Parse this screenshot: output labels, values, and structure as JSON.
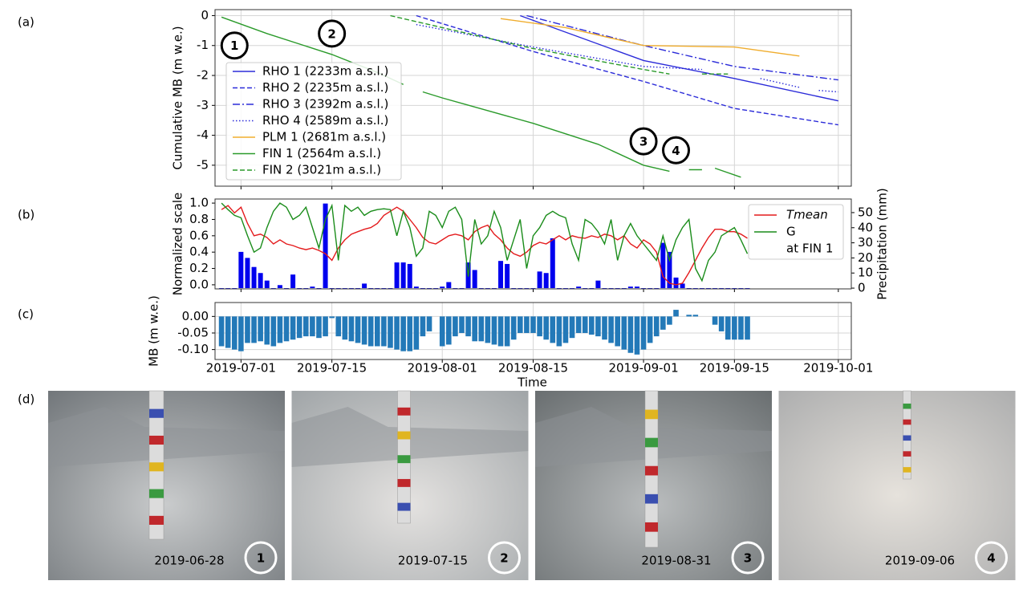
{
  "panel_labels": [
    "(a)",
    "(b)",
    "(c)",
    "(d)"
  ],
  "chart_data": [
    {
      "type": "line",
      "ylabel": "Cumulative MB (m w.e.)",
      "xlim": [
        "2019-06-27",
        "2019-10-03"
      ],
      "ylim": [
        -5.7,
        0.2
      ],
      "yticks": [
        0,
        -1,
        -2,
        -3,
        -4,
        -5
      ],
      "xticks": [
        "2019-07-01",
        "2019-07-15",
        "2019-08-01",
        "2019-08-15",
        "2019-09-01",
        "2019-09-15",
        "2019-10-01"
      ],
      "xtick_labels": false,
      "grid": true,
      "legend": "center left",
      "series": [
        {
          "name": "RHO 1 (2233m a.s.l.)",
          "color": "#2b2bd9",
          "style": "solid",
          "x": [
            "2019-08-13",
            "2019-09-01",
            "2019-09-15",
            "2019-10-01"
          ],
          "values": [
            0.0,
            -1.5,
            -2.1,
            -2.85
          ]
        },
        {
          "name": "RHO 2 (2235m a.s.l.)",
          "color": "#2b2bd9",
          "style": "dashed",
          "x": [
            "2019-07-28",
            "2019-08-15",
            "2019-09-01",
            "2019-09-15",
            "2019-10-01"
          ],
          "values": [
            0.0,
            -1.2,
            -2.2,
            -3.1,
            -3.65
          ]
        },
        {
          "name": "RHO 3 (2392m a.s.l.)",
          "color": "#2b2bd9",
          "style": "dashdot",
          "x": [
            "2019-08-14",
            "2019-09-01",
            "2019-09-15",
            "2019-10-01"
          ],
          "values": [
            0.0,
            -1.0,
            -1.7,
            -2.15
          ]
        },
        {
          "name": "RHO 4 (2589m a.s.l.)",
          "color": "#2b2bd9",
          "style": "dotted",
          "x": [
            "2019-07-28",
            "2019-08-15",
            "2019-09-01",
            "2019-09-10",
            "2019-09-11",
            "2019-09-19",
            "2019-09-25",
            "2019-09-26",
            "2019-09-28",
            "2019-10-01"
          ],
          "values": [
            -0.3,
            -1.05,
            -1.7,
            -1.8,
            null,
            -2.1,
            -2.4,
            null,
            -2.5,
            -2.55
          ]
        },
        {
          "name": "PLM 1 (2681m a.s.l.)",
          "color": "#f0ad2e",
          "style": "solid",
          "x": [
            "2019-08-10",
            "2019-08-20",
            "2019-09-01",
            "2019-09-15",
            "2019-09-25"
          ],
          "values": [
            -0.1,
            -0.4,
            -1.0,
            -1.05,
            -1.35
          ]
        },
        {
          "name": "FIN 1 (2564m a.s.l.)",
          "color": "#2a9a2a",
          "style": "solid",
          "x": [
            "2019-06-28",
            "2019-07-05",
            "2019-07-15",
            "2019-07-22",
            "2019-07-26",
            "2019-07-27",
            "2019-07-29",
            "2019-08-01",
            "2019-08-15",
            "2019-08-25",
            "2019-09-01",
            "2019-09-05",
            "2019-09-06",
            "2019-09-08",
            "2019-09-10",
            "2019-09-11",
            "2019-09-12",
            "2019-09-16"
          ],
          "values": [
            -0.05,
            -0.6,
            -1.3,
            -1.9,
            -2.3,
            null,
            -2.55,
            -2.75,
            -3.6,
            -4.3,
            -5.0,
            -5.2,
            null,
            -5.15,
            -5.15,
            null,
            -5.1,
            -5.4
          ]
        },
        {
          "name": "FIN 2 (3021m a.s.l.)",
          "color": "#2a9a2a",
          "style": "dashed",
          "x": [
            "2019-07-24",
            "2019-08-01",
            "2019-08-15",
            "2019-09-01",
            "2019-09-05",
            "2019-09-06",
            "2019-09-10",
            "2019-09-14"
          ],
          "values": [
            0.0,
            -0.4,
            -1.1,
            -1.8,
            -1.95,
            null,
            -1.95,
            -1.95
          ]
        }
      ],
      "annotations": [
        {
          "text": "1",
          "x": "2019-06-30",
          "y": -1.0
        },
        {
          "text": "2",
          "x": "2019-07-15",
          "y": -0.6
        },
        {
          "text": "3",
          "x": "2019-09-01",
          "y": -4.2
        },
        {
          "text": "4",
          "x": "2019-09-06",
          "y": -4.5
        }
      ]
    },
    {
      "type": "line",
      "ylabel": "Normalized scale",
      "y2label": "Precipitation (mm)",
      "y2color": "#0000ee",
      "xlim": [
        "2019-06-27",
        "2019-10-03"
      ],
      "ylim": [
        -0.05,
        1.05
      ],
      "yticks": [
        {
          "value": 0,
          "label": "0.0"
        },
        {
          "value": 0.2,
          "label": "0.2"
        },
        {
          "value": 0.4,
          "label": "0.4"
        },
        {
          "value": 0.6,
          "label": "0.6"
        },
        {
          "value": 0.8,
          "label": "0.8"
        },
        {
          "value": 1,
          "label": "1.0"
        }
      ],
      "y2lim": [
        -0.5,
        59
      ],
      "y2ticks": [
        0,
        10,
        20,
        30,
        40,
        50
      ],
      "xticks": [
        "2019-07-01",
        "2019-07-15",
        "2019-08-01",
        "2019-08-15",
        "2019-09-01",
        "2019-09-15",
        "2019-10-01"
      ],
      "xtick_labels": false,
      "grid": false,
      "legend": "upper right",
      "legend_note": "at FIN 1",
      "x": [
        "2019-06-28",
        "2019-06-29",
        "2019-06-30",
        "2019-07-01",
        "2019-07-02",
        "2019-07-03",
        "2019-07-04",
        "2019-07-05",
        "2019-07-06",
        "2019-07-07",
        "2019-07-08",
        "2019-07-09",
        "2019-07-10",
        "2019-07-11",
        "2019-07-12",
        "2019-07-13",
        "2019-07-14",
        "2019-07-15",
        "2019-07-16",
        "2019-07-17",
        "2019-07-18",
        "2019-07-19",
        "2019-07-20",
        "2019-07-21",
        "2019-07-22",
        "2019-07-23",
        "2019-07-24",
        "2019-07-25",
        "2019-07-26",
        "2019-07-27",
        "2019-07-28",
        "2019-07-29",
        "2019-07-30",
        "2019-07-31",
        "2019-08-01",
        "2019-08-02",
        "2019-08-03",
        "2019-08-04",
        "2019-08-05",
        "2019-08-06",
        "2019-08-07",
        "2019-08-08",
        "2019-08-09",
        "2019-08-10",
        "2019-08-11",
        "2019-08-12",
        "2019-08-13",
        "2019-08-14",
        "2019-08-15",
        "2019-08-16",
        "2019-08-17",
        "2019-08-18",
        "2019-08-19",
        "2019-08-20",
        "2019-08-21",
        "2019-08-22",
        "2019-08-23",
        "2019-08-24",
        "2019-08-25",
        "2019-08-26",
        "2019-08-27",
        "2019-08-28",
        "2019-08-29",
        "2019-08-30",
        "2019-08-31",
        "2019-09-01",
        "2019-09-02",
        "2019-09-03",
        "2019-09-04",
        "2019-09-05",
        "2019-09-06",
        "2019-09-07",
        "2019-09-08",
        "2019-09-09",
        "2019-09-10",
        "2019-09-11",
        "2019-09-12",
        "2019-09-13",
        "2019-09-14",
        "2019-09-15",
        "2019-09-16",
        "2019-09-17"
      ],
      "series": [
        {
          "name": "Tmean",
          "color": "#e41a1c",
          "values": [
            0.92,
            0.97,
            0.88,
            0.95,
            0.75,
            0.6,
            0.62,
            0.58,
            0.5,
            0.55,
            0.5,
            0.48,
            0.45,
            0.43,
            0.45,
            0.42,
            0.38,
            0.3,
            0.45,
            0.55,
            0.62,
            0.65,
            0.68,
            0.7,
            0.75,
            0.85,
            0.9,
            0.95,
            0.9,
            0.8,
            0.7,
            0.58,
            0.52,
            0.5,
            0.55,
            0.6,
            0.62,
            0.6,
            0.55,
            0.65,
            0.7,
            0.73,
            0.62,
            0.55,
            0.45,
            0.38,
            0.35,
            0.4,
            0.48,
            0.52,
            0.5,
            0.55,
            0.6,
            0.55,
            0.6,
            0.58,
            0.57,
            0.6,
            0.58,
            0.62,
            0.6,
            0.55,
            0.6,
            0.5,
            0.45,
            0.55,
            0.5,
            0.4,
            0.1,
            0.02,
            0,
            0.02,
            0.15,
            0.3,
            0.45,
            0.58,
            0.68,
            0.68,
            0.65,
            0.65,
            0.62,
            0.57
          ]
        },
        {
          "name": "G",
          "color": "#1a8c1a",
          "values": [
            1.0,
            0.92,
            0.85,
            0.82,
            0.6,
            0.4,
            0.45,
            0.7,
            0.9,
            1.0,
            0.95,
            0.8,
            0.85,
            0.95,
            0.7,
            0.45,
            0.8,
            0.97,
            0.3,
            0.97,
            0.9,
            0.95,
            0.85,
            0.9,
            0.92,
            0.93,
            0.92,
            0.6,
            0.9,
            0.7,
            0.35,
            0.45,
            0.9,
            0.85,
            0.7,
            0.9,
            0.95,
            0.8,
            0.1,
            0.8,
            0.5,
            0.6,
            0.9,
            0.7,
            0.3,
            0.55,
            0.8,
            0.2,
            0.6,
            0.7,
            0.85,
            0.9,
            0.85,
            0.82,
            0.5,
            0.3,
            0.8,
            0.75,
            0.65,
            0.5,
            0.8,
            0.3,
            0.6,
            0.75,
            0.6,
            0.5,
            0.4,
            0.3,
            0.6,
            0.3,
            0.55,
            0.7,
            0.8,
            0.2,
            0.05,
            0.3,
            0.4,
            0.6,
            0.65,
            0.7,
            0.55,
            0.38
          ]
        }
      ],
      "bars": {
        "color": "#0000ee",
        "axis": "y2",
        "values": [
          0,
          0,
          0,
          24,
          20,
          14,
          10,
          5,
          0,
          2,
          0,
          9,
          0,
          0,
          1,
          0,
          56,
          0,
          0,
          0,
          0,
          0,
          3,
          0,
          0,
          0,
          0,
          17,
          17,
          16,
          1,
          0,
          0,
          0,
          1,
          4,
          0,
          0,
          17,
          12,
          0,
          0,
          0,
          18,
          16,
          0,
          0,
          0,
          0,
          11,
          10,
          33,
          0,
          0,
          0,
          1,
          0,
          0,
          5,
          0,
          0,
          0,
          0,
          1,
          1,
          0,
          0,
          0,
          30,
          24,
          7,
          3,
          0,
          0,
          0,
          0,
          0,
          0,
          0,
          0,
          0,
          0
        ]
      }
    },
    {
      "type": "bar",
      "ylabel": "MB (m w.e.)",
      "xlabel": "Time",
      "xlim": [
        "2019-06-27",
        "2019-10-03"
      ],
      "ylim": [
        -0.13,
        0.042
      ],
      "yticks": [
        {
          "value": 0,
          "label": "0.00"
        },
        {
          "value": -0.05,
          "label": "-0.05"
        },
        {
          "value": -0.1,
          "label": "-0.10"
        }
      ],
      "xticks": [
        "2019-07-01",
        "2019-07-15",
        "2019-08-01",
        "2019-08-15",
        "2019-09-01",
        "2019-09-15",
        "2019-10-01"
      ],
      "xtick_labels": true,
      "grid": true,
      "color": "#2379b8",
      "x": [
        "2019-06-28",
        "2019-06-29",
        "2019-06-30",
        "2019-07-01",
        "2019-07-02",
        "2019-07-03",
        "2019-07-04",
        "2019-07-05",
        "2019-07-06",
        "2019-07-07",
        "2019-07-08",
        "2019-07-09",
        "2019-07-10",
        "2019-07-11",
        "2019-07-12",
        "2019-07-13",
        "2019-07-14",
        "2019-07-15",
        "2019-07-16",
        "2019-07-17",
        "2019-07-18",
        "2019-07-19",
        "2019-07-20",
        "2019-07-21",
        "2019-07-22",
        "2019-07-23",
        "2019-07-24",
        "2019-07-25",
        "2019-07-26",
        "2019-07-27",
        "2019-07-28",
        "2019-07-29",
        "2019-07-30",
        "2019-07-31",
        "2019-08-01",
        "2019-08-02",
        "2019-08-03",
        "2019-08-04",
        "2019-08-05",
        "2019-08-06",
        "2019-08-07",
        "2019-08-08",
        "2019-08-09",
        "2019-08-10",
        "2019-08-11",
        "2019-08-12",
        "2019-08-13",
        "2019-08-14",
        "2019-08-15",
        "2019-08-16",
        "2019-08-17",
        "2019-08-18",
        "2019-08-19",
        "2019-08-20",
        "2019-08-21",
        "2019-08-22",
        "2019-08-23",
        "2019-08-24",
        "2019-08-25",
        "2019-08-26",
        "2019-08-27",
        "2019-08-28",
        "2019-08-29",
        "2019-08-30",
        "2019-08-31",
        "2019-09-01",
        "2019-09-02",
        "2019-09-03",
        "2019-09-04",
        "2019-09-05",
        "2019-09-06",
        "2019-09-07",
        "2019-09-08",
        "2019-09-09",
        "2019-09-10",
        "2019-09-11",
        "2019-09-12",
        "2019-09-13",
        "2019-09-14",
        "2019-09-15",
        "2019-09-16",
        "2019-09-17"
      ],
      "values": [
        -0.09,
        -0.095,
        -0.1,
        -0.105,
        -0.08,
        -0.08,
        -0.075,
        -0.085,
        -0.09,
        -0.08,
        -0.075,
        -0.07,
        -0.065,
        -0.06,
        -0.06,
        -0.065,
        -0.06,
        -0.005,
        -0.06,
        -0.07,
        -0.075,
        -0.08,
        -0.085,
        -0.09,
        -0.09,
        -0.09,
        -0.095,
        -0.1,
        -0.105,
        -0.105,
        -0.1,
        -0.06,
        -0.045,
        null,
        -0.09,
        -0.085,
        -0.06,
        -0.05,
        -0.06,
        -0.075,
        -0.075,
        -0.08,
        -0.085,
        -0.09,
        -0.09,
        -0.07,
        -0.05,
        -0.05,
        -0.05,
        -0.06,
        -0.07,
        -0.08,
        -0.09,
        -0.08,
        -0.065,
        -0.05,
        -0.05,
        -0.055,
        -0.06,
        -0.07,
        -0.08,
        -0.09,
        -0.1,
        -0.11,
        -0.115,
        -0.1,
        -0.08,
        -0.06,
        -0.04,
        -0.025,
        0.02,
        null,
        0.005,
        0.005,
        null,
        null,
        -0.025,
        -0.045,
        -0.07,
        -0.07,
        -0.07,
        -0.07
      ]
    }
  ],
  "photos": [
    {
      "date": "2019-06-28",
      "number": "1"
    },
    {
      "date": "2019-07-15",
      "number": "2"
    },
    {
      "date": "2019-08-31",
      "number": "3"
    },
    {
      "date": "2019-09-06",
      "number": "4"
    }
  ]
}
